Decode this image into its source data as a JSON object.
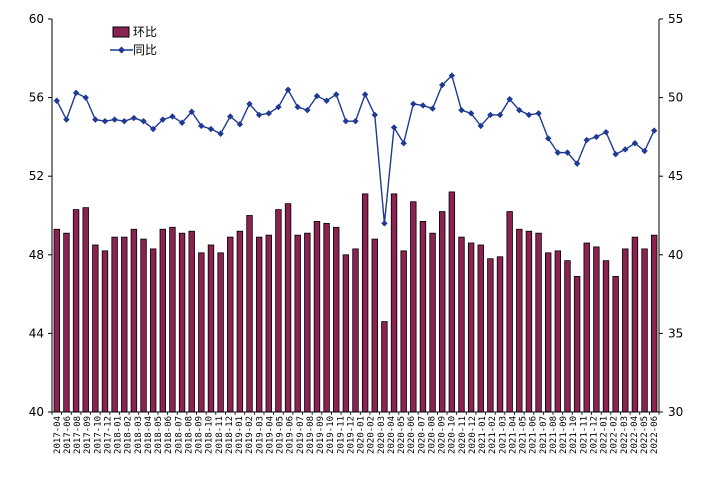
{
  "chart_data": {
    "type": "bar+line",
    "title": "",
    "xlabel": "",
    "ylabel": "",
    "y2label": "",
    "ylim": [
      40,
      60
    ],
    "y2lim": [
      30,
      55
    ],
    "yticks": [
      40,
      44,
      48,
      52,
      56,
      60
    ],
    "y2ticks": [
      30,
      35,
      40,
      45,
      50,
      55
    ],
    "grid": false,
    "legend_position": "top-left",
    "categories": [
      "2017-04",
      "2017-05",
      "2017-06",
      "2017-07",
      "2017-08",
      "2017-09",
      "2017-10",
      "2017-11",
      "2017-12",
      "2018-01",
      "2018-02",
      "2018-03",
      "2018-04",
      "2018-05",
      "2018-06",
      "2018-07",
      "2018-08",
      "2018-09",
      "2018-10",
      "2018-11",
      "2018-12",
      "2019-01",
      "2019-02",
      "2019-03",
      "2019-04",
      "2019-05",
      "2019-06",
      "2019-07",
      "2019-08",
      "2019-09",
      "2019-10",
      "2019-11",
      "2019-12",
      "2020-01",
      "2020-02",
      "2020-03",
      "2020-04",
      "2020-05",
      "2020-06",
      "2020-07",
      "2020-08",
      "2020-09",
      "2020-10",
      "2020-11",
      "2020-12",
      "2021-01",
      "2021-02",
      "2021-03",
      "2021-04",
      "2021-05",
      "2021-06",
      "2021-07",
      "2021-08",
      "2021-09",
      "2021-10",
      "2021-11",
      "2021-12",
      "2022-01",
      "2022-02",
      "2022-03",
      "2022-04",
      "2022-05",
      "2022-06"
    ],
    "xtick_labels": [
      "2017-04",
      "2017-06",
      "2017-08",
      "2017-09",
      "2017-10",
      "2017-12",
      "2018-01",
      "2018-02",
      "2018-03",
      "2018-04",
      "2018-05",
      "2018-06",
      "2018-07",
      "2018-08",
      "2018-09",
      "2018-10",
      "2018-11",
      "2018-12",
      "2019-01",
      "2019-02",
      "2019-03",
      "2019-04",
      "2019-05",
      "2019-06",
      "2019-07",
      "2019-08",
      "2019-09",
      "2019-10",
      "2019-11",
      "2019-12",
      "2020-01",
      "2020-02",
      "2020-03",
      "2020-04",
      "2020-05",
      "2020-06",
      "2020-07",
      "2020-08",
      "2020-09",
      "2020-10",
      "2020-11",
      "2020-12",
      "2021-01",
      "2021-02",
      "2021-03",
      "2021-04",
      "2021-05",
      "2021-06",
      "2021-07",
      "2021-08",
      "2021-09",
      "2021-10",
      "2021-11",
      "2021-12",
      "2022-01",
      "2022-02",
      "2022-03",
      "2022-04",
      "2022-05",
      "2022-06"
    ],
    "series": [
      {
        "name": "环比",
        "type": "bar",
        "axis": "left",
        "color": "#8B2252",
        "values": [
          49.3,
          49.1,
          50.3,
          50.4,
          48.5,
          48.2,
          48.9,
          48.9,
          49.3,
          48.8,
          48.3,
          49.3,
          49.4,
          49.1,
          49.2,
          48.1,
          48.5,
          48.1,
          48.9,
          49.2,
          50.0,
          48.9,
          49.0,
          50.3,
          50.6,
          49.0,
          49.1,
          49.7,
          49.6,
          49.4,
          48.0,
          48.3,
          51.1,
          48.8,
          44.6,
          51.1,
          48.2,
          50.7,
          49.7,
          49.1,
          50.2,
          51.2,
          48.9,
          48.6,
          48.5,
          47.8,
          47.9,
          50.2,
          49.3,
          49.2,
          49.1,
          48.1,
          48.2,
          47.7,
          46.9,
          48.6,
          48.4,
          47.7,
          46.9,
          48.3,
          48.9,
          48.3,
          49.0
        ]
      },
      {
        "name": "同比",
        "type": "line",
        "axis": "right",
        "color": "#1F3A93",
        "values": [
          49.8,
          48.6,
          50.3,
          50.0,
          48.6,
          48.5,
          48.6,
          48.5,
          48.7,
          48.5,
          48.0,
          48.6,
          48.8,
          48.4,
          49.1,
          48.2,
          48.0,
          47.7,
          48.8,
          48.3,
          49.6,
          48.9,
          49.0,
          49.4,
          50.5,
          49.4,
          49.2,
          50.1,
          49.8,
          50.2,
          48.5,
          48.5,
          50.2,
          48.9,
          42.0,
          48.1,
          47.1,
          49.6,
          49.5,
          49.3,
          50.8,
          51.4,
          49.2,
          49.0,
          48.2,
          48.9,
          48.9,
          49.9,
          49.2,
          48.9,
          49.0,
          47.4,
          46.5,
          46.5,
          45.8,
          47.3,
          47.5,
          47.8,
          46.4,
          46.7,
          47.1,
          46.6,
          47.9
        ]
      }
    ]
  }
}
